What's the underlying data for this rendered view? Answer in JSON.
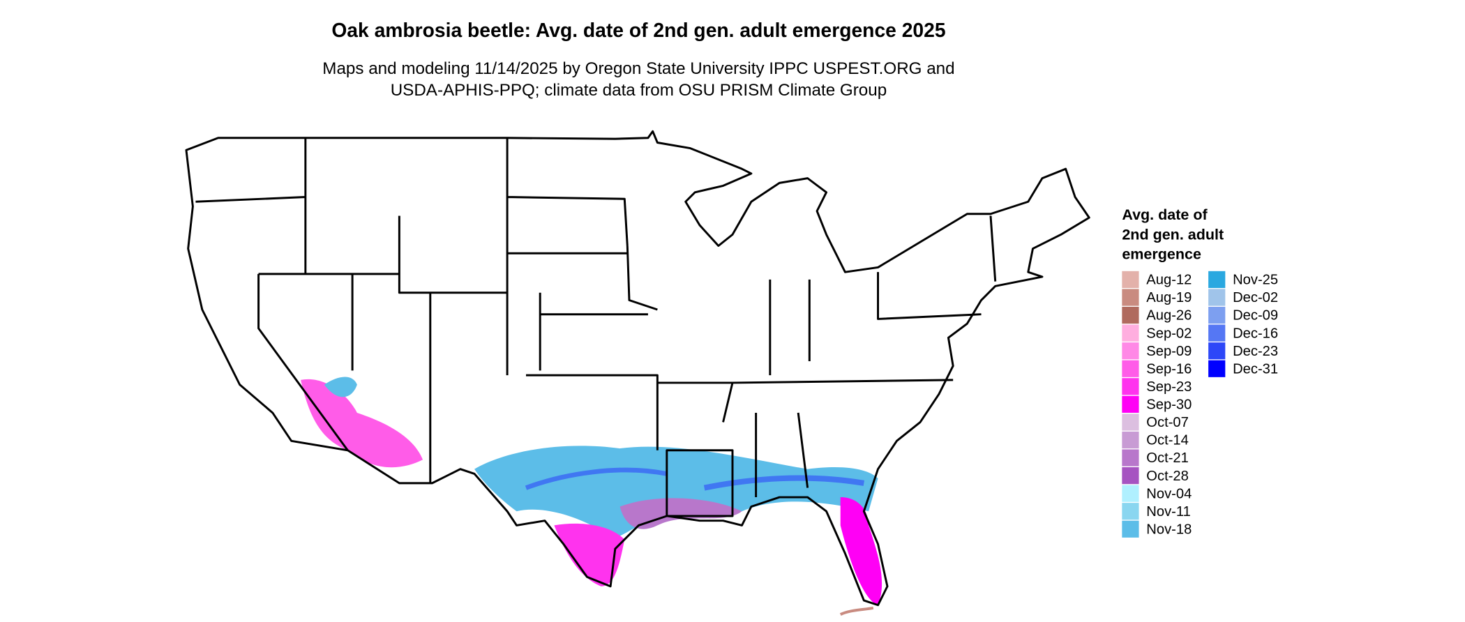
{
  "title": "Oak ambrosia beetle: Avg. date of 2nd gen. adult emergence 2025",
  "subtitle": [
    "Maps and modeling 11/14/2025 by Oregon State University IPPC USPEST.ORG and",
    "USDA-APHIS-PPQ; climate data from OSU PRISM Climate Group"
  ],
  "legend": {
    "title": [
      "Avg. date of",
      "2nd gen. adult",
      "emergence"
    ],
    "items": [
      {
        "label": "Aug-12",
        "color": "#e3b1aa"
      },
      {
        "label": "Aug-19",
        "color": "#c98b80"
      },
      {
        "label": "Aug-26",
        "color": "#b06a5e"
      },
      {
        "label": "Sep-02",
        "color": "#ffaedf"
      },
      {
        "label": "Sep-09",
        "color": "#ff88e6"
      },
      {
        "label": "Sep-16",
        "color": "#ff5ce8"
      },
      {
        "label": "Sep-23",
        "color": "#ff33ee"
      },
      {
        "label": "Sep-30",
        "color": "#ff00f5"
      },
      {
        "label": "Oct-07",
        "color": "#dcbfe0"
      },
      {
        "label": "Oct-14",
        "color": "#c89bd4"
      },
      {
        "label": "Oct-21",
        "color": "#b877cb"
      },
      {
        "label": "Oct-28",
        "color": "#a653c1"
      },
      {
        "label": "Nov-04",
        "color": "#b0f0ff"
      },
      {
        "label": "Nov-11",
        "color": "#8ad6f0"
      },
      {
        "label": "Nov-18",
        "color": "#5cbde8"
      },
      {
        "label": "Nov-25",
        "color": "#2aa8e0"
      },
      {
        "label": "Dec-02",
        "color": "#a0c4ea"
      },
      {
        "label": "Dec-09",
        "color": "#7d9ff0"
      },
      {
        "label": "Dec-16",
        "color": "#5577f4"
      },
      {
        "label": "Dec-23",
        "color": "#2d47f8"
      },
      {
        "label": "Dec-31",
        "color": "#0000ff"
      }
    ]
  }
}
